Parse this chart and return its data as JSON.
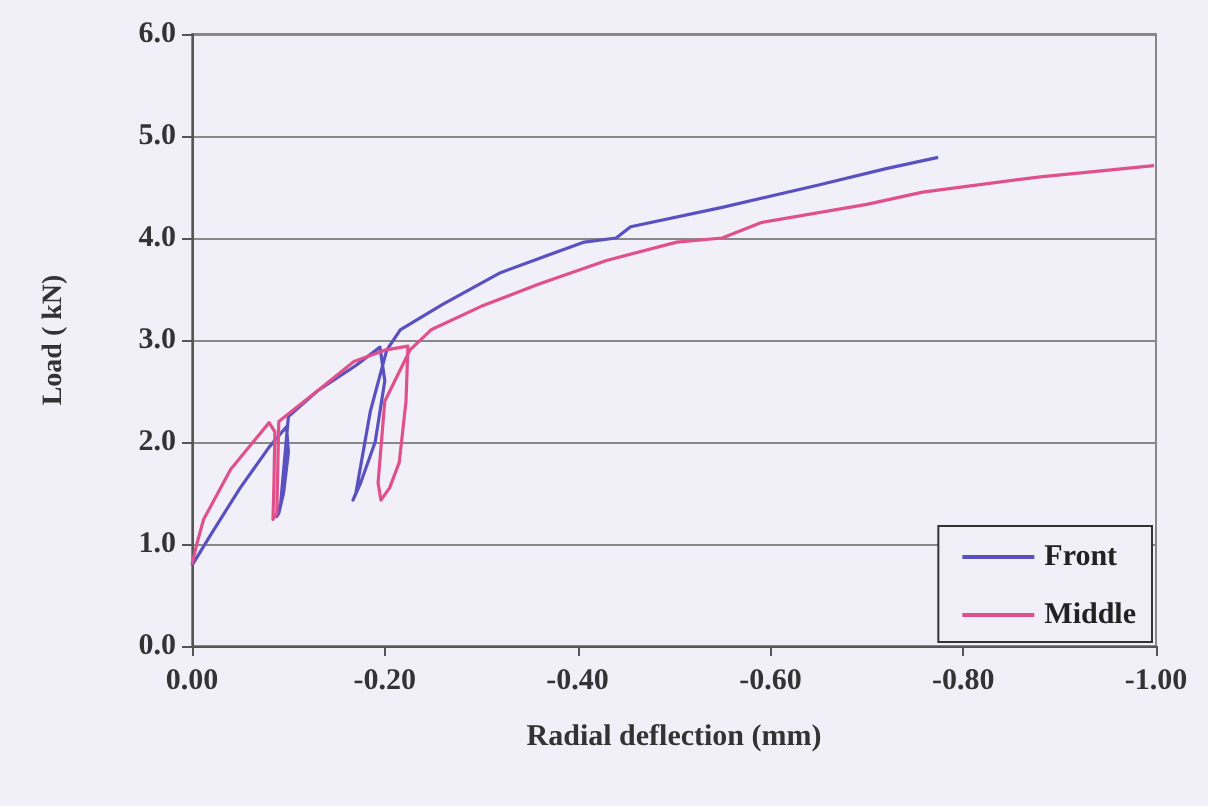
{
  "chart_data": {
    "type": "line",
    "xlabel": "Radial deflection (mm)",
    "ylabel": "Load ( kN)",
    "xlim": [
      0,
      -1
    ],
    "xticks": [
      {
        "value": 0,
        "label": "0.00"
      },
      {
        "value": -0.2,
        "label": "-0.20"
      },
      {
        "value": -0.4,
        "label": "-0.40"
      },
      {
        "value": -0.6,
        "label": "-0.60"
      },
      {
        "value": -0.8,
        "label": "-0.80"
      },
      {
        "value": -1,
        "label": "-1.00"
      }
    ],
    "ylim": [
      0,
      6
    ],
    "yticks": [
      {
        "value": 0,
        "label": "0.0"
      },
      {
        "value": 1,
        "label": "1.0"
      },
      {
        "value": 2,
        "label": "2.0"
      },
      {
        "value": 3,
        "label": "3.0"
      },
      {
        "value": 4,
        "label": "4.0"
      },
      {
        "value": 5,
        "label": "5.0"
      },
      {
        "value": 6,
        "label": "6.0"
      }
    ],
    "grid": "y",
    "legend": "bottom right",
    "marker": "none",
    "line_style": "solid",
    "series": [
      {
        "name": "Front",
        "color": "#5a50c0",
        "x": [
          0,
          -0.02,
          -0.05,
          -0.08,
          -0.098,
          -0.1,
          -0.095,
          -0.09,
          -0.088,
          -0.092,
          -0.1,
          -0.13,
          -0.17,
          -0.195,
          -0.2,
          -0.19,
          -0.175,
          -0.167,
          -0.17,
          -0.185,
          -0.202,
          -0.216,
          -0.26,
          -0.32,
          -0.36,
          -0.407,
          -0.44,
          -0.455,
          -0.55,
          -0.65,
          -0.72,
          -0.774
        ],
        "values": [
          0.79,
          1.1,
          1.55,
          1.95,
          2.15,
          1.9,
          1.5,
          1.3,
          1.27,
          1.4,
          2.25,
          2.5,
          2.75,
          2.93,
          2.6,
          2.0,
          1.6,
          1.43,
          1.5,
          2.3,
          2.9,
          3.1,
          3.35,
          3.66,
          3.8,
          3.96,
          4.0,
          4.11,
          4.3,
          4.52,
          4.68,
          4.79
        ]
      },
      {
        "name": "Middle",
        "color": "#e0508a",
        "x": [
          0,
          -0.005,
          -0.012,
          -0.04,
          -0.08,
          -0.086,
          -0.085,
          -0.084,
          -0.088,
          -0.09,
          -0.13,
          -0.168,
          -0.2,
          -0.224,
          -0.222,
          -0.215,
          -0.205,
          -0.196,
          -0.193,
          -0.2,
          -0.226,
          -0.248,
          -0.3,
          -0.36,
          -0.43,
          -0.503,
          -0.55,
          -0.59,
          -0.7,
          -0.758,
          -0.88,
          -0.998
        ],
        "values": [
          0.8,
          1.0,
          1.24,
          1.73,
          2.19,
          2.1,
          1.6,
          1.24,
          1.3,
          2.2,
          2.5,
          2.79,
          2.9,
          2.94,
          2.4,
          1.8,
          1.55,
          1.43,
          1.6,
          2.4,
          2.9,
          3.1,
          3.33,
          3.55,
          3.78,
          3.96,
          4.0,
          4.15,
          4.33,
          4.45,
          4.6,
          4.71
        ]
      }
    ]
  }
}
